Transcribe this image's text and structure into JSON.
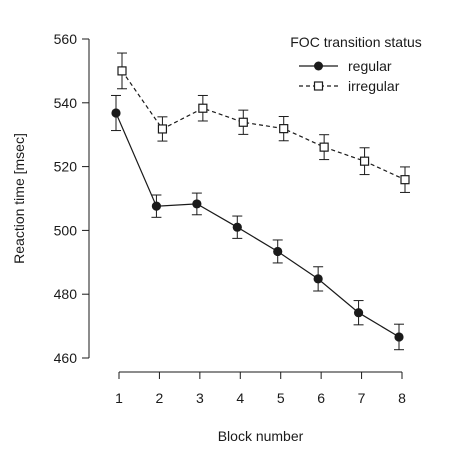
{
  "chart_data": {
    "type": "line",
    "title": "",
    "xlabel": "Block number",
    "ylabel": "Reaction time [msec]",
    "x": [
      1,
      2,
      3,
      4,
      5,
      6,
      7,
      8
    ],
    "x_tick_labels": [
      "1",
      "2",
      "3",
      "4",
      "5",
      "6",
      "7",
      "8"
    ],
    "xlim": [
      1,
      8
    ],
    "ylim": [
      460,
      560
    ],
    "y_ticks": [
      460,
      480,
      500,
      520,
      540,
      560
    ],
    "y_tick_labels": [
      "460",
      "480",
      "500",
      "520",
      "540",
      "560"
    ],
    "grid": false,
    "legend": {
      "title": "FOC transition status",
      "position": "top-right"
    },
    "series": [
      {
        "name": "regular",
        "marker": "filled-circle",
        "line_style": "solid",
        "color": "#1a1a1a",
        "values": [
          536.8,
          507.6,
          508.3,
          501.0,
          493.4,
          484.8,
          474.2,
          466.6
        ],
        "error": [
          5.5,
          3.5,
          3.4,
          3.5,
          3.6,
          3.8,
          3.8,
          4.0
        ]
      },
      {
        "name": "irregular",
        "marker": "open-square",
        "line_style": "dashed",
        "color": "#1a1a1a",
        "values": [
          550.0,
          531.8,
          538.3,
          533.9,
          531.9,
          526.1,
          521.7,
          515.9
        ],
        "error": [
          5.6,
          3.8,
          4.0,
          3.8,
          3.8,
          3.9,
          4.2,
          4.0
        ]
      }
    ]
  }
}
